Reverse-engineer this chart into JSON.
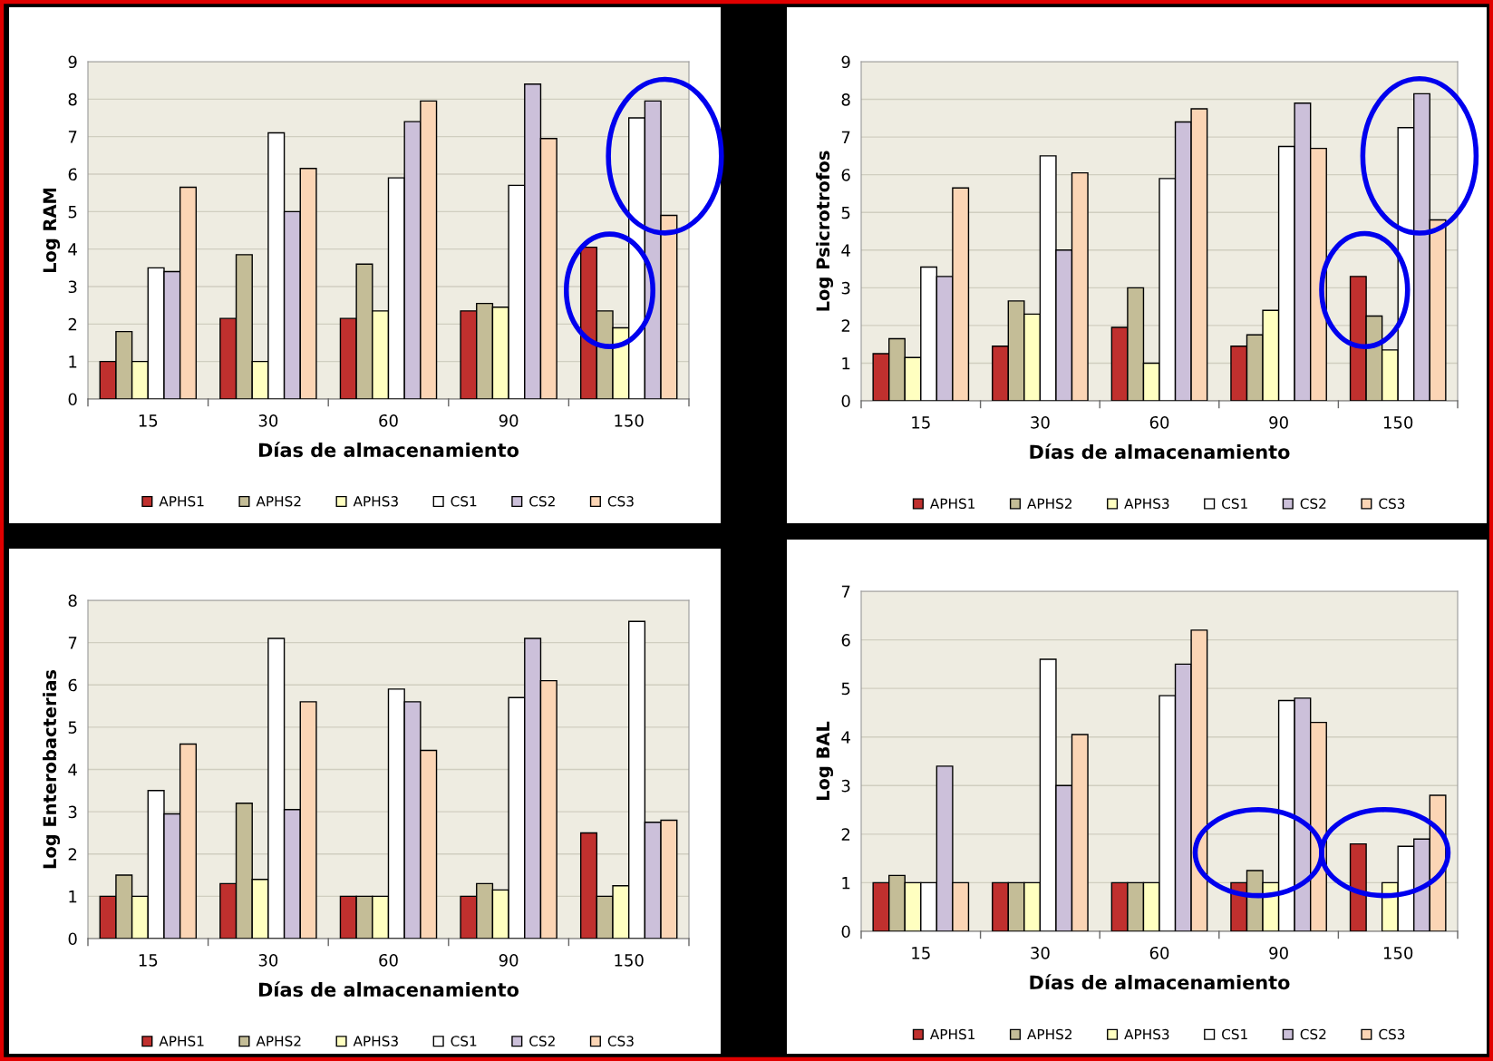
{
  "chart_data": [
    {
      "type": "bar",
      "ylabel": "Log RAM",
      "xlabel": "Días de almacenamiento",
      "categories": [
        "15",
        "30",
        "60",
        "90",
        "150"
      ],
      "ylim": [
        0,
        9
      ],
      "yticks": [
        0,
        1,
        2,
        3,
        4,
        5,
        6,
        7,
        8,
        9
      ],
      "grid": "y",
      "legend": "bottom",
      "series": [
        {
          "name": "APHS1",
          "color": "#c0302e",
          "values": [
            1,
            2.15,
            2.15,
            2.35,
            4.05
          ]
        },
        {
          "name": "APHS2",
          "color": "#c4bd97",
          "values": [
            1.8,
            3.85,
            3.6,
            2.55,
            2.35
          ]
        },
        {
          "name": "APHS3",
          "color": "#ffffc0",
          "values": [
            1,
            1,
            2.35,
            2.45,
            1.9
          ]
        },
        {
          "name": "CS1",
          "color": "#ffffff",
          "values": [
            3.5,
            7.1,
            5.9,
            5.7,
            7.5
          ]
        },
        {
          "name": "CS2",
          "color": "#ccc0da",
          "values": [
            3.4,
            5,
            7.4,
            8.4,
            7.95
          ]
        },
        {
          "name": "CS3",
          "color": "#fbd5b5",
          "values": [
            5.65,
            6.15,
            7.95,
            6.95,
            4.9
          ]
        }
      ]
    },
    {
      "type": "bar",
      "ylabel": "Log Psicrotrofos",
      "xlabel": "Días de almacenamiento",
      "categories": [
        "15",
        "30",
        "60",
        "90",
        "150"
      ],
      "ylim": [
        0,
        9
      ],
      "yticks": [
        0,
        1,
        2,
        3,
        4,
        5,
        6,
        7,
        8,
        9
      ],
      "grid": "y",
      "legend": "bottom",
      "series": [
        {
          "name": "APHS1",
          "color": "#c0302e",
          "values": [
            1.25,
            1.45,
            1.95,
            1.45,
            3.3
          ]
        },
        {
          "name": "APHS2",
          "color": "#c4bd97",
          "values": [
            1.65,
            2.65,
            3,
            1.75,
            2.25
          ]
        },
        {
          "name": "APHS3",
          "color": "#ffffc0",
          "values": [
            1.15,
            2.3,
            1,
            2.4,
            1.35
          ]
        },
        {
          "name": "CS1",
          "color": "#ffffff",
          "values": [
            3.55,
            6.5,
            5.9,
            6.75,
            7.25
          ]
        },
        {
          "name": "CS2",
          "color": "#ccc0da",
          "values": [
            3.3,
            4,
            7.4,
            7.9,
            8.15
          ]
        },
        {
          "name": "CS3",
          "color": "#fbd5b5",
          "values": [
            5.65,
            6.05,
            7.75,
            6.7,
            4.8
          ]
        }
      ]
    },
    {
      "type": "bar",
      "ylabel": "Log Enterobacterias",
      "xlabel": "Días de almacenamiento",
      "categories": [
        "15",
        "30",
        "60",
        "90",
        "150"
      ],
      "ylim": [
        0,
        8
      ],
      "yticks": [
        0,
        1,
        2,
        3,
        4,
        5,
        6,
        7,
        8
      ],
      "grid": "y",
      "legend": "bottom",
      "series": [
        {
          "name": "APHS1",
          "color": "#c0302e",
          "values": [
            1,
            1.3,
            1,
            1,
            2.5
          ]
        },
        {
          "name": "APHS2",
          "color": "#c4bd97",
          "values": [
            1.5,
            3.2,
            1,
            1.3,
            1
          ]
        },
        {
          "name": "APHS3",
          "color": "#ffffc0",
          "values": [
            1,
            1.4,
            1,
            1.15,
            1.25
          ]
        },
        {
          "name": "CS1",
          "color": "#ffffff",
          "values": [
            3.5,
            7.1,
            5.9,
            5.7,
            7.5
          ]
        },
        {
          "name": "CS2",
          "color": "#ccc0da",
          "values": [
            2.95,
            3.05,
            5.6,
            7.1,
            2.75
          ]
        },
        {
          "name": "CS3",
          "color": "#fbd5b5",
          "values": [
            4.6,
            5.6,
            4.45,
            6.1,
            2.8
          ]
        }
      ]
    },
    {
      "type": "bar",
      "ylabel": "Log BAL",
      "xlabel": "Días de almacenamiento",
      "categories": [
        "15",
        "30",
        "60",
        "90",
        "150"
      ],
      "ylim": [
        0,
        7
      ],
      "yticks": [
        0,
        1,
        2,
        3,
        4,
        5,
        6,
        7
      ],
      "grid": "y",
      "legend": "bottom",
      "series": [
        {
          "name": "APHS1",
          "color": "#c0302e",
          "values": [
            1,
            1,
            1,
            1,
            1.8
          ]
        },
        {
          "name": "APHS2",
          "color": "#c4bd97",
          "values": [
            1.15,
            1,
            1,
            1.25,
            null
          ]
        },
        {
          "name": "APHS3",
          "color": "#ffffc0",
          "values": [
            1,
            1,
            1,
            1,
            1
          ]
        },
        {
          "name": "CS1",
          "color": "#ffffff",
          "values": [
            1,
            5.6,
            4.85,
            4.75,
            1.75
          ]
        },
        {
          "name": "CS2",
          "color": "#ccc0da",
          "values": [
            3.4,
            3,
            5.5,
            4.8,
            1.9
          ]
        },
        {
          "name": "CS3",
          "color": "#fbd5b5",
          "values": [
            1,
            4.05,
            6.2,
            4.3,
            2.8
          ]
        }
      ]
    }
  ]
}
